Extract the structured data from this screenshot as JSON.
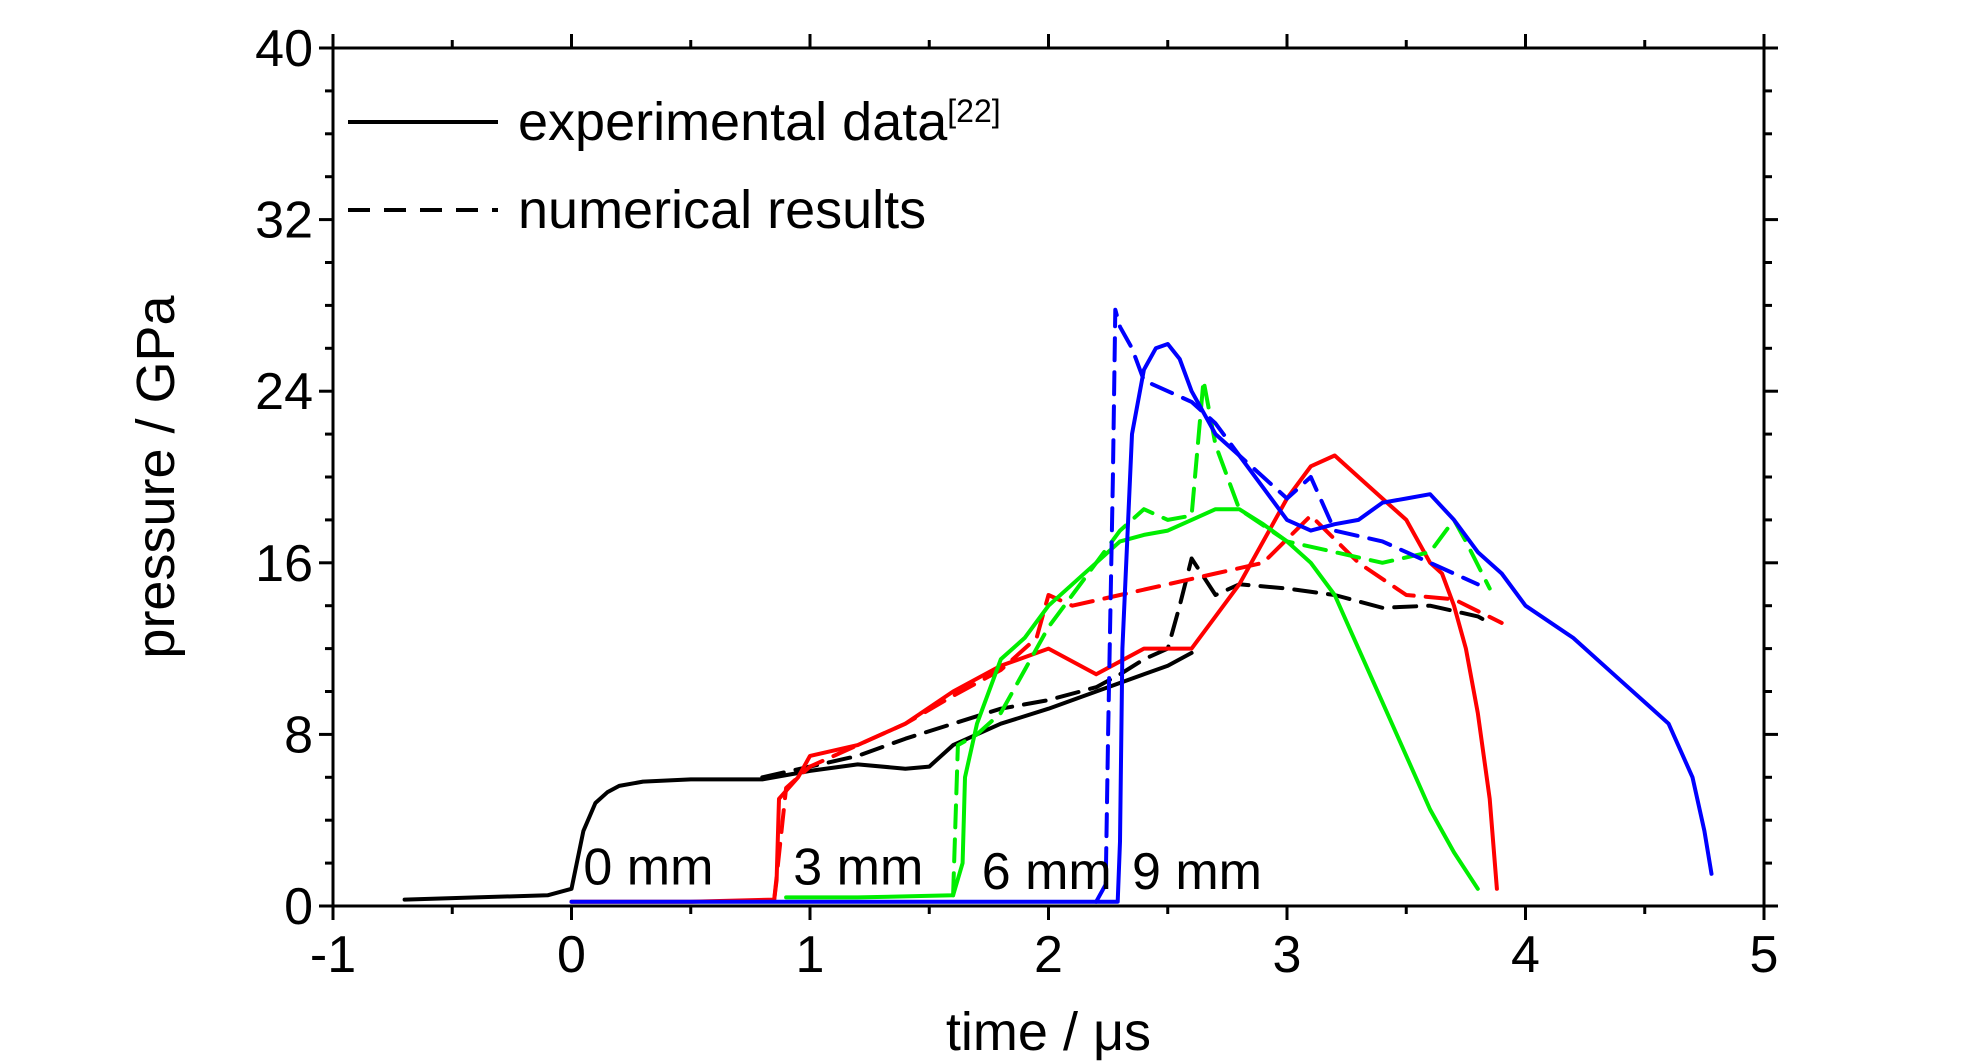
{
  "chart_data": {
    "type": "line",
    "xlabel": "time / μs",
    "ylabel": "pressure / GPa",
    "xlim": [
      -1,
      5
    ],
    "ylim": [
      0,
      40
    ],
    "x_ticks": [
      -1,
      0,
      1,
      2,
      3,
      4,
      5
    ],
    "y_ticks": [
      0,
      8,
      16,
      24,
      32,
      40
    ],
    "grid": false,
    "legend": {
      "position": "top-left",
      "entries": [
        {
          "label": "experimental data",
          "superscript": "[22]",
          "style": "solid",
          "color": "#000000"
        },
        {
          "label": "numerical results",
          "superscript": "",
          "style": "dashed",
          "color": "#000000"
        }
      ]
    },
    "annotations": [
      {
        "text": "0 mm",
        "x": 0.05,
        "y": 1.0
      },
      {
        "text": "3 mm",
        "x": 0.93,
        "y": 1.0
      },
      {
        "text": "6 mm",
        "x": 1.72,
        "y": 0.8
      },
      {
        "text": "9 mm",
        "x": 2.35,
        "y": 0.8
      }
    ],
    "series": [
      {
        "gauge": "0 mm",
        "kind": "experimental",
        "color": "#000000",
        "style": "solid",
        "x": [
          -0.7,
          -0.4,
          -0.1,
          0.0,
          0.05,
          0.1,
          0.15,
          0.2,
          0.3,
          0.5,
          0.8,
          1.0,
          1.2,
          1.4,
          1.5,
          1.6,
          1.8,
          2.0,
          2.2,
          2.4,
          2.5,
          2.6
        ],
        "y": [
          0.3,
          0.4,
          0.5,
          0.8,
          3.5,
          4.8,
          5.3,
          5.6,
          5.8,
          5.9,
          5.9,
          6.3,
          6.6,
          6.4,
          6.5,
          7.5,
          8.5,
          9.2,
          10.0,
          10.8,
          11.2,
          11.8
        ]
      },
      {
        "gauge": "0 mm",
        "kind": "numerical",
        "color": "#000000",
        "style": "dashed",
        "x": [
          0.8,
          1.0,
          1.2,
          1.4,
          1.6,
          1.8,
          2.0,
          2.2,
          2.3,
          2.4,
          2.5,
          2.55,
          2.6,
          2.7,
          2.8,
          3.0,
          3.2,
          3.4,
          3.6,
          3.8,
          3.85
        ],
        "y": [
          6.0,
          6.5,
          7.0,
          7.8,
          8.5,
          9.2,
          9.6,
          10.2,
          10.8,
          11.5,
          12.0,
          14.0,
          16.2,
          14.5,
          15.0,
          14.8,
          14.5,
          13.9,
          14.0,
          13.5,
          13.2
        ]
      },
      {
        "gauge": "3 mm",
        "kind": "experimental",
        "color": "#ff0000",
        "style": "solid",
        "x": [
          0.0,
          0.5,
          0.85,
          0.86,
          0.87,
          0.95,
          1.0,
          1.2,
          1.4,
          1.6,
          1.8,
          2.0,
          2.2,
          2.4,
          2.6,
          2.7,
          2.8,
          2.9,
          3.0,
          3.1,
          3.2,
          3.3,
          3.4,
          3.5,
          3.6,
          3.65,
          3.7,
          3.75,
          3.8,
          3.85,
          3.88
        ],
        "y": [
          0.2,
          0.2,
          0.3,
          1.2,
          5.0,
          6.0,
          7.0,
          7.5,
          8.5,
          10.0,
          11.2,
          12.0,
          10.8,
          12.0,
          12.0,
          13.5,
          15.0,
          17.0,
          19.0,
          20.5,
          21.0,
          20.0,
          19.0,
          18.0,
          16.0,
          15.5,
          14.0,
          12.0,
          9.0,
          5.0,
          0.8
        ]
      },
      {
        "gauge": "3 mm",
        "kind": "numerical",
        "color": "#ff0000",
        "style": "dashed",
        "x": [
          0.85,
          0.9,
          1.0,
          1.2,
          1.4,
          1.6,
          1.8,
          1.95,
          2.0,
          2.1,
          2.3,
          2.5,
          2.7,
          2.9,
          3.1,
          3.3,
          3.5,
          3.7,
          3.9
        ],
        "y": [
          0.3,
          5.5,
          6.5,
          7.5,
          8.5,
          9.8,
          11.0,
          12.5,
          14.5,
          14.0,
          14.5,
          15.0,
          15.5,
          16.0,
          18.2,
          16.0,
          14.5,
          14.3,
          13.2
        ]
      },
      {
        "gauge": "6 mm",
        "kind": "experimental",
        "color": "#00ee00",
        "style": "solid",
        "x": [
          0.9,
          1.2,
          1.6,
          1.64,
          1.65,
          1.7,
          1.8,
          1.9,
          2.0,
          2.1,
          2.2,
          2.3,
          2.4,
          2.5,
          2.6,
          2.7,
          2.8,
          2.9,
          3.0,
          3.1,
          3.2,
          3.3,
          3.4,
          3.5,
          3.6,
          3.7,
          3.8
        ],
        "y": [
          0.4,
          0.4,
          0.5,
          2.0,
          6.0,
          8.5,
          11.5,
          12.5,
          14.0,
          15.0,
          16.0,
          17.0,
          17.3,
          17.5,
          18.0,
          18.5,
          18.5,
          17.8,
          17.0,
          16.0,
          14.5,
          12.0,
          9.5,
          7.0,
          4.5,
          2.5,
          0.8
        ]
      },
      {
        "gauge": "6 mm",
        "kind": "numerical",
        "color": "#00ee00",
        "style": "dashed",
        "x": [
          1.6,
          1.62,
          1.7,
          1.8,
          1.9,
          2.0,
          2.1,
          2.2,
          2.3,
          2.4,
          2.5,
          2.6,
          2.65,
          2.7,
          2.8,
          3.0,
          3.2,
          3.4,
          3.6,
          3.7,
          3.75,
          3.85
        ],
        "y": [
          0.5,
          7.5,
          8.0,
          9.0,
          11.0,
          13.0,
          14.5,
          16.0,
          17.5,
          18.5,
          18.0,
          18.2,
          24.5,
          21.5,
          18.5,
          17.0,
          16.5,
          16.0,
          16.5,
          18.0,
          17.0,
          14.8
        ]
      },
      {
        "gauge": "9 mm",
        "kind": "experimental",
        "color": "#0000ff",
        "style": "solid",
        "x": [
          0.0,
          1.0,
          2.29,
          2.3,
          2.31,
          2.35,
          2.4,
          2.45,
          2.5,
          2.55,
          2.6,
          2.7,
          2.8,
          2.9,
          3.0,
          3.1,
          3.2,
          3.3,
          3.4,
          3.5,
          3.6,
          3.7,
          3.8,
          3.9,
          4.0,
          4.2,
          4.4,
          4.5,
          4.6,
          4.7,
          4.75,
          4.78
        ],
        "y": [
          0.2,
          0.2,
          0.2,
          3.0,
          12.0,
          22.0,
          25.0,
          26.0,
          26.2,
          25.5,
          24.0,
          22.0,
          21.0,
          19.5,
          18.0,
          17.5,
          17.8,
          18.0,
          18.8,
          19.0,
          19.2,
          18.0,
          16.5,
          15.5,
          14.0,
          12.5,
          10.5,
          9.5,
          8.5,
          6.0,
          3.5,
          1.5
        ]
      },
      {
        "gauge": "9 mm",
        "kind": "numerical",
        "color": "#0000ff",
        "style": "dashed",
        "x": [
          2.2,
          2.24,
          2.25,
          2.27,
          2.28,
          2.3,
          2.35,
          2.4,
          2.5,
          2.6,
          2.7,
          2.8,
          2.9,
          3.0,
          3.1,
          3.2,
          3.4,
          3.6,
          3.8
        ],
        "y": [
          0.2,
          1.0,
          8.0,
          20.0,
          27.8,
          27.0,
          26.0,
          24.5,
          24.0,
          23.5,
          22.5,
          21.0,
          20.0,
          19.0,
          20.0,
          17.5,
          17.0,
          16.0,
          15.0
        ]
      }
    ]
  }
}
